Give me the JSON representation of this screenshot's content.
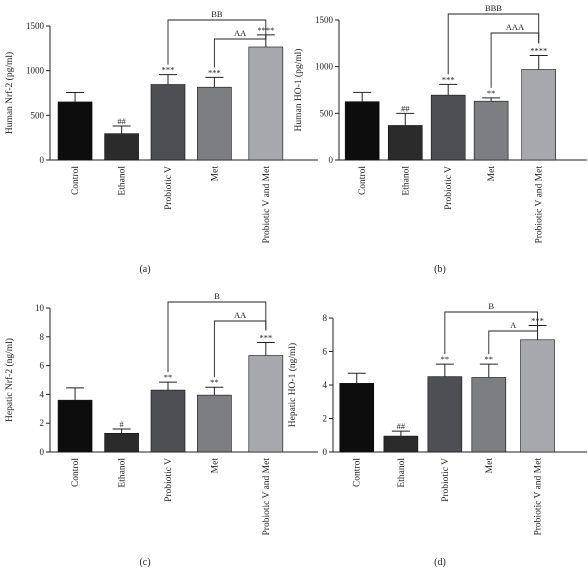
{
  "chart_data": [
    {
      "type": "bar",
      "panel_label": "(a)",
      "ylabel": "Human Nrf-2 (pg/ml)",
      "ylim": [
        0,
        1500
      ],
      "yticks": [
        0,
        500,
        1000,
        1500
      ],
      "categories": [
        "Control",
        "Ethanol",
        "Probiotic V",
        "Met",
        "Probiotic V and Met"
      ],
      "values": [
        650,
        295,
        845,
        815,
        1265
      ],
      "errors": [
        105,
        85,
        110,
        110,
        135
      ],
      "bar_colors": [
        "#0d0d0d",
        "#2b2b2b",
        "#4d4f53",
        "#7c7e82",
        "#a6a8ab"
      ],
      "significance": [
        "",
        "##",
        "***",
        "***",
        "****"
      ],
      "brackets": [
        {
          "from": 2,
          "to": 4,
          "label": "BB"
        },
        {
          "from": 3,
          "to": 4,
          "label": "AA"
        }
      ]
    },
    {
      "type": "bar",
      "panel_label": "(b)",
      "ylabel": "Human HO-1 (pg/ml)",
      "ylim": [
        0,
        1500
      ],
      "yticks": [
        0,
        500,
        1000,
        1500
      ],
      "categories": [
        "Control",
        "Ethanol",
        "Probiotic V",
        "Met",
        "Probiotic V and Met"
      ],
      "values": [
        625,
        370,
        695,
        630,
        970
      ],
      "errors": [
        100,
        130,
        115,
        35,
        150
      ],
      "bar_colors": [
        "#0d0d0d",
        "#2b2b2b",
        "#4d4f53",
        "#7c7e82",
        "#a6a8ab"
      ],
      "significance": [
        "",
        "##",
        "***",
        "**",
        "****"
      ],
      "brackets": [
        {
          "from": 2,
          "to": 4,
          "label": "BBB"
        },
        {
          "from": 3,
          "to": 4,
          "label": "AAA"
        }
      ]
    },
    {
      "type": "bar",
      "panel_label": "(c)",
      "ylabel": "Hepatic Nrf-2 (ng/ml)",
      "ylim": [
        0,
        10
      ],
      "yticks": [
        0,
        2,
        4,
        6,
        8,
        10
      ],
      "categories": [
        "Control",
        "Ethanol",
        "Probiotic V",
        "Met",
        "Probiotic V and Met"
      ],
      "values": [
        3.6,
        1.3,
        4.3,
        3.95,
        6.7
      ],
      "errors": [
        0.85,
        0.3,
        0.55,
        0.55,
        0.9
      ],
      "bar_colors": [
        "#0d0d0d",
        "#2b2b2b",
        "#4d4f53",
        "#7c7e82",
        "#a6a8ab"
      ],
      "significance": [
        "",
        "#",
        "**",
        "**",
        "***"
      ],
      "brackets": [
        {
          "from": 2,
          "to": 4,
          "label": "B"
        },
        {
          "from": 3,
          "to": 4,
          "label": "AA"
        }
      ]
    },
    {
      "type": "bar",
      "panel_label": "(d)",
      "ylabel": "Hepatic HO-1 (ng/ml)",
      "ylim": [
        0,
        8
      ],
      "yticks": [
        0,
        2,
        4,
        6,
        8
      ],
      "categories": [
        "Control",
        "Ethanol",
        "Probiotic V",
        "Met",
        "Probiotic V and Met"
      ],
      "values": [
        4.1,
        0.95,
        4.5,
        4.45,
        6.7
      ],
      "errors": [
        0.6,
        0.3,
        0.75,
        0.8,
        0.85
      ],
      "bar_colors": [
        "#0d0d0d",
        "#2b2b2b",
        "#4d4f53",
        "#7c7e82",
        "#a6a8ab"
      ],
      "significance": [
        "",
        "##",
        "**",
        "**",
        "***"
      ],
      "brackets": [
        {
          "from": 2,
          "to": 4,
          "label": "B"
        },
        {
          "from": 3,
          "to": 4,
          "label": "A"
        }
      ]
    }
  ]
}
